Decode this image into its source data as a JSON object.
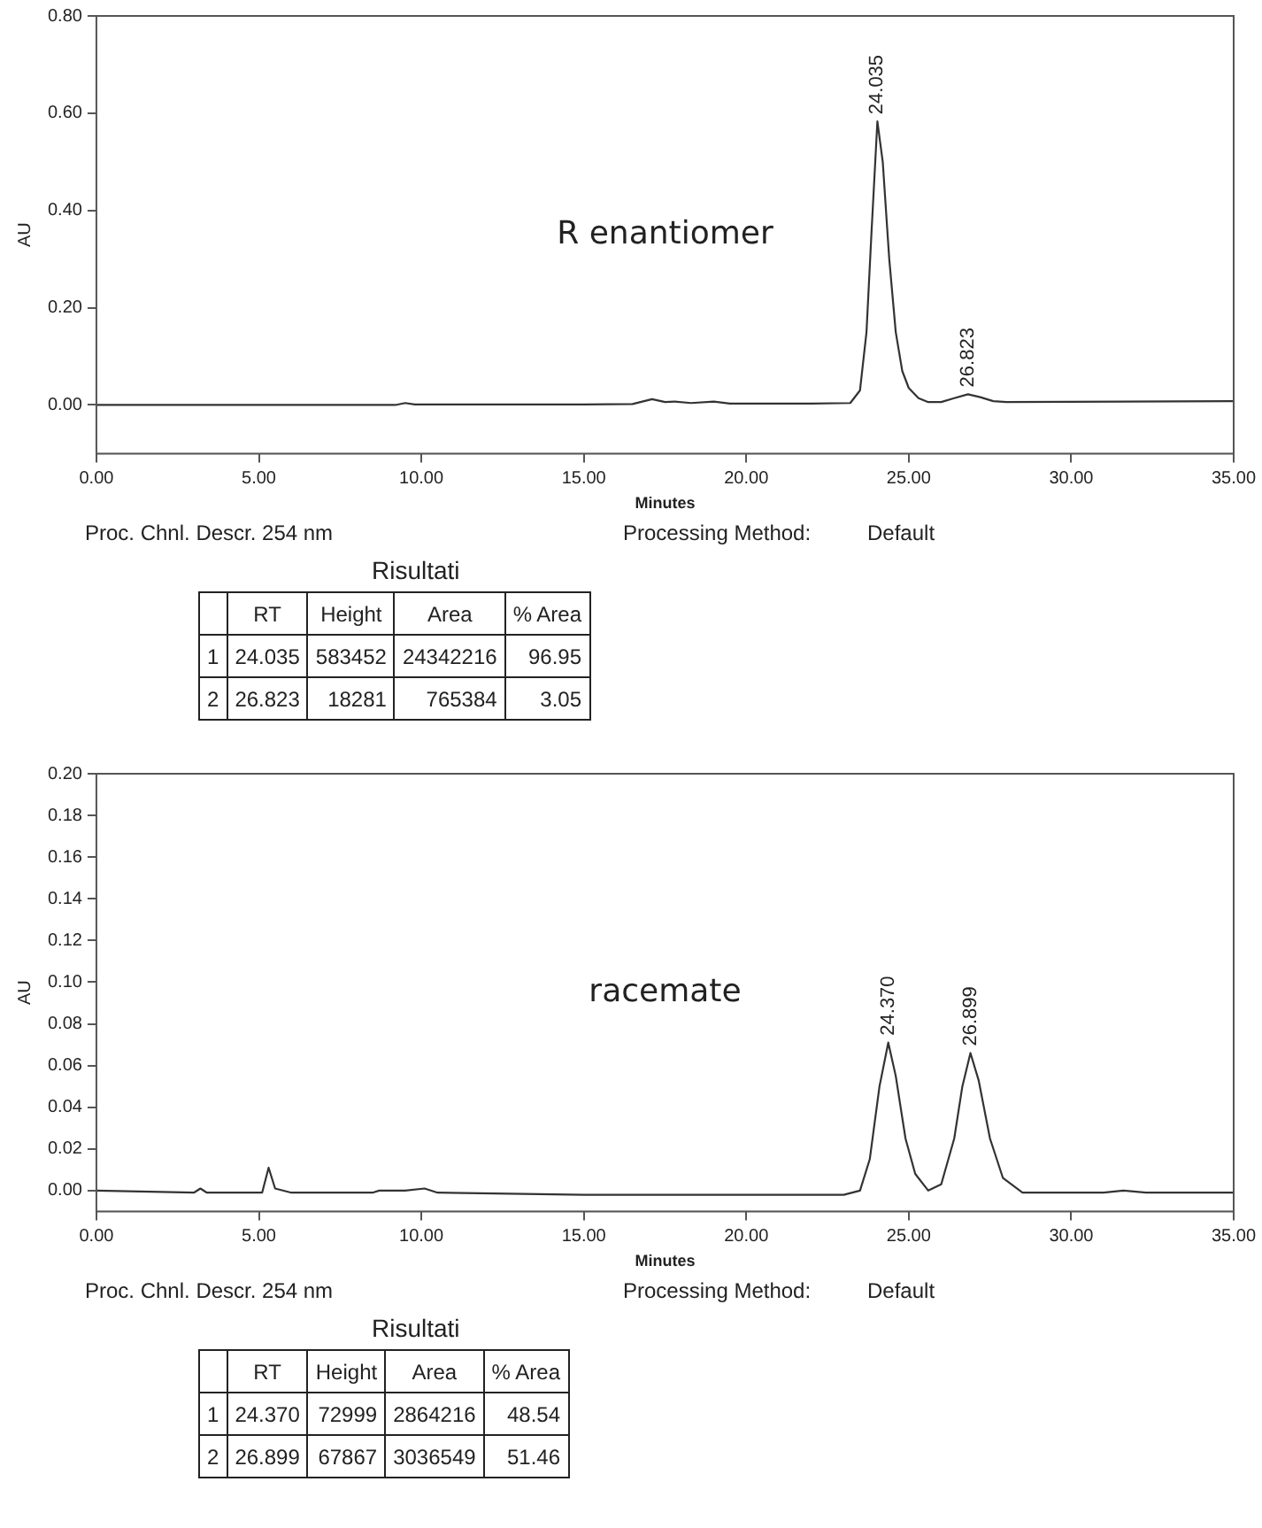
{
  "chart_data": [
    {
      "type": "line",
      "xlabel": "Minutes",
      "ylabel": "AU",
      "color": "#333333",
      "marker": "none",
      "x": [
        0,
        5,
        9.2,
        9.5,
        9.8,
        15,
        16.5,
        17.1,
        17.5,
        17.8,
        18.3,
        19.0,
        19.5,
        22,
        23.2,
        23.5,
        23.7,
        23.85,
        24.035,
        24.2,
        24.4,
        24.6,
        24.8,
        25.0,
        25.3,
        25.6,
        26.0,
        26.4,
        26.823,
        27.2,
        27.6,
        28,
        35
      ],
      "values": [
        0,
        0,
        0,
        0.004,
        0.001,
        0.001,
        0.002,
        0.012,
        0.006,
        0.007,
        0.004,
        0.007,
        0.003,
        0.003,
        0.004,
        0.03,
        0.15,
        0.35,
        0.583,
        0.5,
        0.3,
        0.15,
        0.07,
        0.035,
        0.014,
        0.006,
        0.006,
        0.014,
        0.022,
        0.016,
        0.008,
        0.006,
        0.008
      ],
      "xlim": [
        0,
        35
      ],
      "ylim": [
        -0.1,
        0.8
      ],
      "xticks": [
        {
          "value": 0,
          "label": "0.00"
        },
        {
          "value": 5,
          "label": "5.00"
        },
        {
          "value": 10,
          "label": "10.00"
        },
        {
          "value": 15,
          "label": "15.00"
        },
        {
          "value": 20,
          "label": "20.00"
        },
        {
          "value": 25,
          "label": "25.00"
        },
        {
          "value": 30,
          "label": "30.00"
        },
        {
          "value": 35,
          "label": "35.00"
        }
      ],
      "yticks": [
        {
          "value": 0,
          "label": "0.00"
        },
        {
          "value": 0.2,
          "label": "0.20"
        },
        {
          "value": 0.4,
          "label": "0.40"
        },
        {
          "value": 0.6,
          "label": "0.60"
        },
        {
          "value": 0.8,
          "label": "0.80"
        }
      ],
      "annotations": [
        "R enantiomer",
        {
          "text": "24.035",
          "x": 24.035,
          "y": 0.583
        },
        {
          "text": "26.823",
          "x": 26.823,
          "y": 0.022
        },
        "Proc. Chnl. Descr. 254 nm",
        "Processing Method:",
        "Default",
        "Risultati",
        "RT",
        "Height",
        "Area",
        "% Area",
        "1",
        "24.035",
        "583452",
        "24342216",
        "96.95",
        "2",
        "26.823",
        "18281",
        "765384",
        "3.05"
      ]
    },
    {
      "type": "line",
      "xlabel": "Minutes",
      "ylabel": "AU",
      "color": "#333333",
      "marker": "none",
      "x": [
        0,
        3,
        3.2,
        3.4,
        5.1,
        5.3,
        5.5,
        6,
        8.5,
        8.7,
        9.5,
        10.1,
        10.5,
        15,
        18,
        23,
        23.5,
        23.8,
        24.1,
        24.37,
        24.6,
        24.9,
        25.2,
        25.6,
        26.0,
        26.4,
        26.65,
        26.899,
        27.15,
        27.5,
        27.9,
        28.5,
        31,
        31.6,
        32.3,
        35
      ],
      "values": [
        0,
        -0.001,
        0.001,
        -0.001,
        -0.001,
        0.011,
        0.001,
        -0.001,
        -0.001,
        0,
        0,
        0.001,
        -0.001,
        -0.002,
        -0.002,
        -0.002,
        0,
        0.015,
        0.05,
        0.071,
        0.055,
        0.025,
        0.008,
        0,
        0.003,
        0.025,
        0.05,
        0.066,
        0.053,
        0.025,
        0.006,
        -0.001,
        -0.001,
        0,
        -0.001,
        -0.001
      ],
      "xlim": [
        0,
        35
      ],
      "ylim": [
        -0.01,
        0.2
      ],
      "xticks": [
        {
          "value": 0,
          "label": "0.00"
        },
        {
          "value": 5,
          "label": "5.00"
        },
        {
          "value": 10,
          "label": "10.00"
        },
        {
          "value": 15,
          "label": "15.00"
        },
        {
          "value": 20,
          "label": "20.00"
        },
        {
          "value": 25,
          "label": "25.00"
        },
        {
          "value": 30,
          "label": "30.00"
        },
        {
          "value": 35,
          "label": "35.00"
        }
      ],
      "yticks": [
        {
          "value": 0,
          "label": "0.00"
        },
        {
          "value": 0.02,
          "label": "0.02"
        },
        {
          "value": 0.04,
          "label": "0.04"
        },
        {
          "value": 0.06,
          "label": "0.06"
        },
        {
          "value": 0.08,
          "label": "0.08"
        },
        {
          "value": 0.1,
          "label": "0.10"
        },
        {
          "value": 0.12,
          "label": "0.12"
        },
        {
          "value": 0.14,
          "label": "0.14"
        },
        {
          "value": 0.16,
          "label": "0.16"
        },
        {
          "value": 0.18,
          "label": "0.18"
        },
        {
          "value": 0.2,
          "label": "0.20"
        }
      ],
      "annotations": [
        "racemate",
        {
          "text": "24.370",
          "x": 24.37,
          "y": 0.071
        },
        {
          "text": "26.899",
          "x": 26.899,
          "y": 0.066
        },
        "Proc. Chnl. Descr. 254 nm",
        "Processing Method:",
        "Default",
        "Risultati",
        "RT",
        "Height",
        "Area",
        "% Area",
        "1",
        "24.370",
        "72999",
        "2864216",
        "48.54",
        "2",
        "26.899",
        "67867",
        "3036549",
        "51.46"
      ]
    }
  ]
}
